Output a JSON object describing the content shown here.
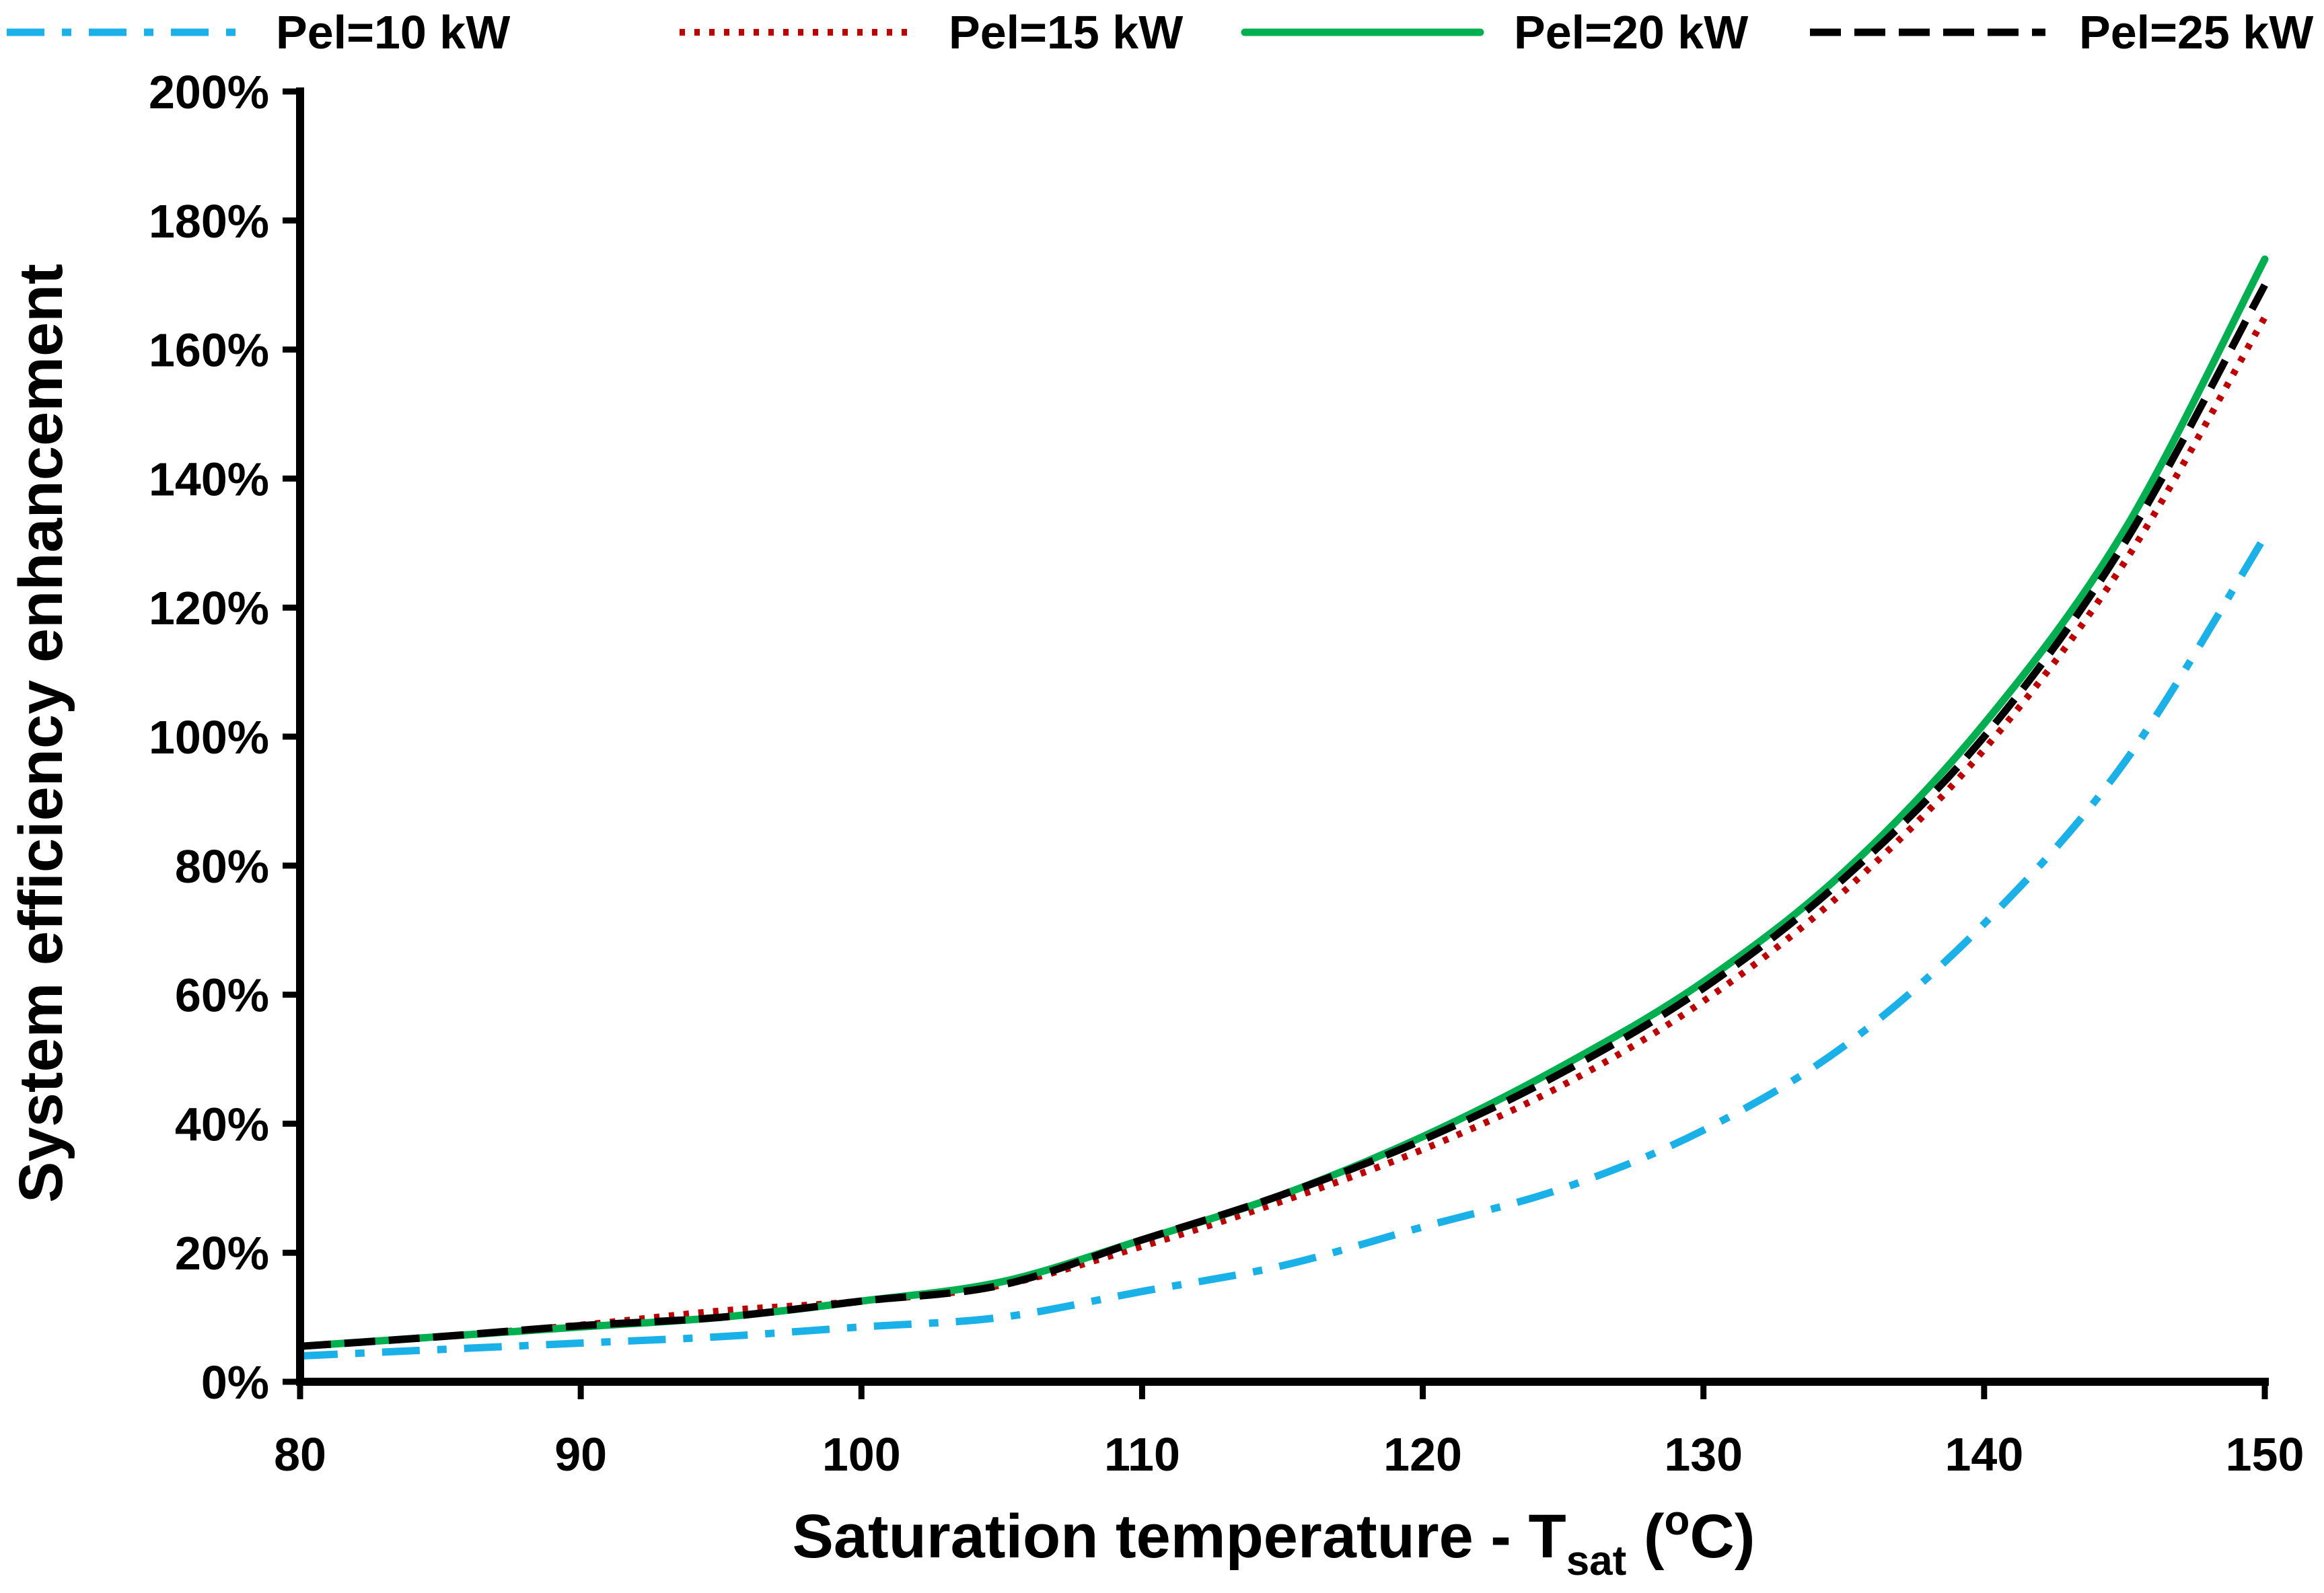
{
  "chart_data": {
    "type": "line",
    "title": "",
    "xlabel": {
      "main": "Saturation temperature - T",
      "subscript": "sat",
      "unit_open": " (",
      "superscript": "o",
      "unit_close": "C)"
    },
    "ylabel": "System efficiency enhancement",
    "xlim": [
      80,
      150
    ],
    "ylim": [
      0,
      2
    ],
    "x_ticks": [
      80,
      90,
      100,
      110,
      120,
      130,
      140,
      150
    ],
    "y_ticks": [
      0,
      0.2,
      0.4,
      0.6,
      0.8,
      1.0,
      1.2,
      1.4,
      1.6,
      1.8,
      2.0
    ],
    "x_tick_labels": [
      "80",
      "90",
      "100",
      "110",
      "120",
      "130",
      "140",
      "150"
    ],
    "y_tick_labels": [
      "0%",
      "20%",
      "40%",
      "60%",
      "80%",
      "100%",
      "120%",
      "140%",
      "160%",
      "180%",
      "200%"
    ],
    "grid": false,
    "legend_position": "top",
    "x": [
      80,
      85,
      90,
      95,
      100,
      105,
      110,
      115,
      120,
      125,
      130,
      135,
      140,
      145,
      150
    ],
    "series": [
      {
        "name": "Pel=10 kW",
        "color": "#1ab0e8",
        "dash": "dashdot",
        "values": [
          0.04,
          0.05,
          0.06,
          0.07,
          0.085,
          0.1,
          0.14,
          0.18,
          0.24,
          0.3,
          0.39,
          0.52,
          0.71,
          0.96,
          1.31
        ]
      },
      {
        "name": "Pel=15 kW",
        "color": "#c00000",
        "dash": "dotted",
        "values": [
          0.055,
          0.07,
          0.088,
          0.11,
          0.125,
          0.15,
          0.21,
          0.28,
          0.36,
          0.46,
          0.59,
          0.76,
          0.98,
          1.27,
          1.65
        ]
      },
      {
        "name": "Pel=20 kW",
        "color": "#00b050",
        "dash": "solid",
        "values": [
          0.055,
          0.07,
          0.085,
          0.1,
          0.125,
          0.155,
          0.22,
          0.29,
          0.38,
          0.49,
          0.62,
          0.79,
          1.02,
          1.32,
          1.74
        ]
      },
      {
        "name": "Pel=25 kW",
        "color": "#000000",
        "dash": "dashed",
        "values": [
          0.055,
          0.07,
          0.087,
          0.1,
          0.125,
          0.15,
          0.22,
          0.29,
          0.375,
          0.48,
          0.61,
          0.78,
          1.0,
          1.3,
          1.7
        ]
      }
    ]
  }
}
